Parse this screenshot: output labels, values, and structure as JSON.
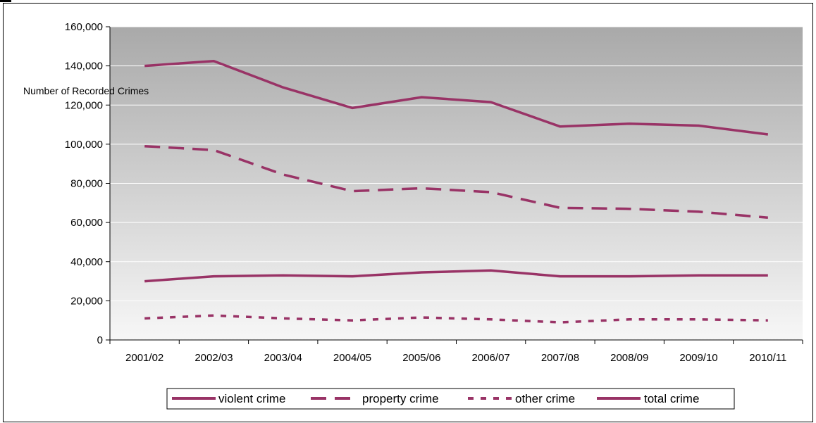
{
  "chart_data": {
    "type": "line",
    "ylabel": "Number of Recorded Crimes",
    "xlabel": "",
    "title": "",
    "categories": [
      "2001/02",
      "2002/03",
      "2003/04",
      "2004/05",
      "2005/06",
      "2006/07",
      "2007/08",
      "2008/09",
      "2009/10",
      "2010/11"
    ],
    "ylim": [
      0,
      160000
    ],
    "yticks": [
      0,
      20000,
      40000,
      60000,
      80000,
      100000,
      120000,
      140000,
      160000
    ],
    "ytick_labels": [
      "0",
      "20,000",
      "40,000",
      "60,000",
      "80,000",
      "100,000",
      "120,000",
      "140,000",
      "160,000"
    ],
    "grid": true,
    "legend_position": "bottom",
    "line_color": "#993366",
    "series": [
      {
        "name": "violent crime",
        "style": "solid",
        "values": [
          30000,
          32500,
          33000,
          32500,
          34500,
          35500,
          32500,
          32500,
          33000,
          33000
        ]
      },
      {
        "name": "property crime",
        "style": "long-dash",
        "values": [
          99000,
          97000,
          84500,
          76000,
          77500,
          75500,
          67500,
          67000,
          65500,
          62500
        ]
      },
      {
        "name": "other crime",
        "style": "short-dash",
        "values": [
          11000,
          12500,
          11000,
          10000,
          11500,
          10500,
          9000,
          10500,
          10500,
          10000
        ]
      },
      {
        "name": "total crime",
        "style": "solid",
        "values": [
          140000,
          142500,
          129000,
          118500,
          124000,
          121500,
          109000,
          110500,
          109500,
          105000
        ]
      }
    ]
  }
}
